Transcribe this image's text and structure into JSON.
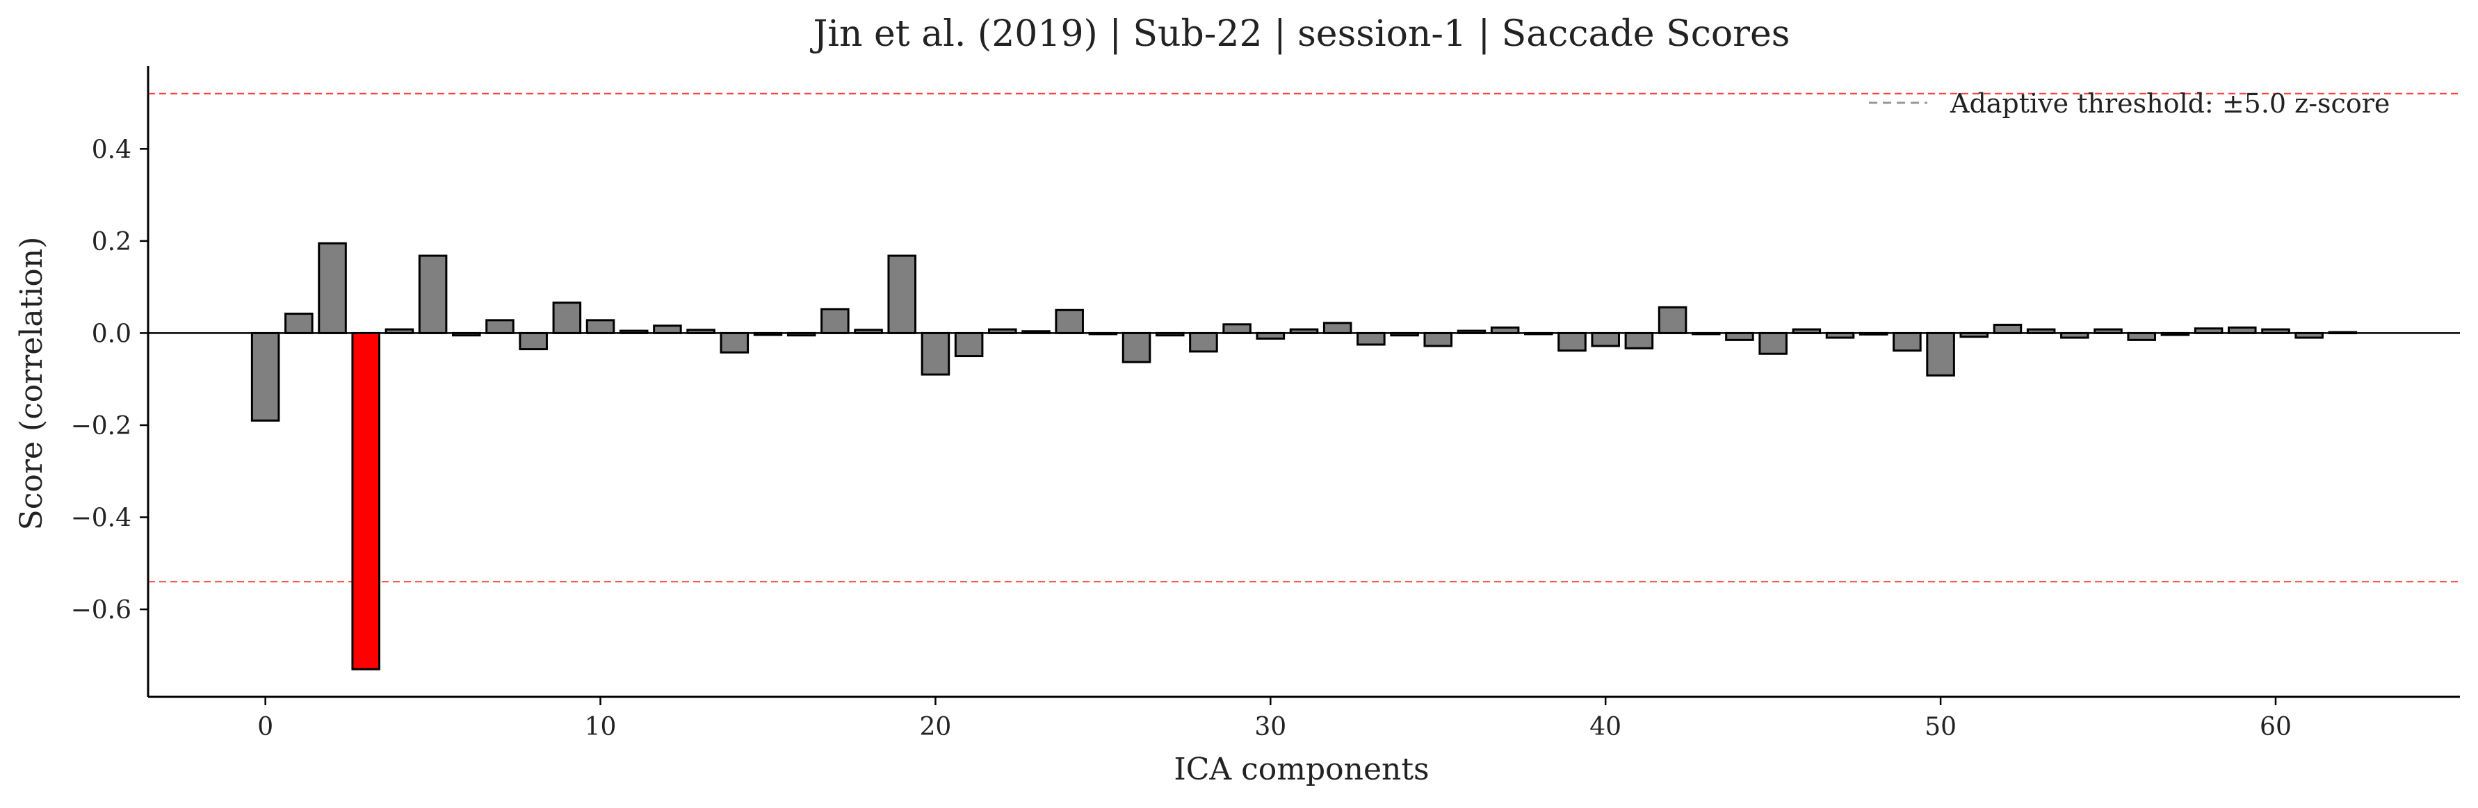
{
  "colors": {
    "bar": "#808080",
    "bar_flagged": "#ff0000",
    "bar_edge": "#000000",
    "threshold": "#ff0000",
    "legend_line": "#999999",
    "axis": "#000000",
    "text": "#222222"
  },
  "chart_data": {
    "type": "bar",
    "title": "Jin et al. (2019) | Sub-22 | session-1 | Saccade Scores",
    "xlabel": "ICA components",
    "ylabel": "Score (correlation)",
    "xlim": [
      -3.5,
      65.5
    ],
    "ylim": [
      -0.79,
      0.58
    ],
    "xticks": [
      0,
      10,
      20,
      30,
      40,
      50,
      60
    ],
    "xtick_labels": [
      "0",
      "10",
      "20",
      "30",
      "40",
      "50",
      "60"
    ],
    "yticks": [
      -0.6,
      -0.4,
      -0.2,
      0.0,
      0.2,
      0.4
    ],
    "ytick_labels": [
      "−0.6",
      "−0.4",
      "−0.2",
      "0.0",
      "0.2",
      "0.4"
    ],
    "x": [
      0,
      1,
      2,
      3,
      4,
      5,
      6,
      7,
      8,
      9,
      10,
      11,
      12,
      13,
      14,
      15,
      16,
      17,
      18,
      19,
      20,
      21,
      22,
      23,
      24,
      25,
      26,
      27,
      28,
      29,
      30,
      31,
      32,
      33,
      34,
      35,
      36,
      37,
      38,
      39,
      40,
      41,
      42,
      43,
      44,
      45,
      46,
      47,
      48,
      49,
      50,
      51,
      52,
      53,
      54,
      55,
      56,
      57,
      58,
      59,
      60,
      61,
      62
    ],
    "values": [
      -0.19,
      0.042,
      0.195,
      -0.73,
      0.008,
      0.168,
      -0.005,
      0.028,
      -0.035,
      0.066,
      0.028,
      0.005,
      0.016,
      0.007,
      -0.042,
      -0.004,
      -0.005,
      0.052,
      0.007,
      0.168,
      -0.09,
      -0.05,
      0.008,
      0.004,
      0.05,
      -0.002,
      -0.063,
      -0.005,
      -0.04,
      0.019,
      -0.012,
      0.008,
      0.022,
      -0.025,
      -0.005,
      -0.028,
      0.005,
      0.012,
      -0.002,
      -0.038,
      -0.028,
      -0.033,
      0.056,
      -0.002,
      -0.015,
      -0.045,
      0.008,
      -0.01,
      -0.003,
      -0.038,
      -0.092,
      -0.008,
      0.018,
      0.008,
      -0.01,
      0.008,
      -0.015,
      -0.004,
      0.01,
      0.012,
      0.008,
      -0.01,
      0.002
    ],
    "flagged": [
      3
    ],
    "thresholds": [
      0.52,
      -0.54
    ],
    "threshold_style": "dashed",
    "zero_line": true,
    "grid": false,
    "legend": {
      "position": "top-right",
      "entries": [
        "Adaptive threshold: ±5.0 z-score"
      ]
    }
  }
}
